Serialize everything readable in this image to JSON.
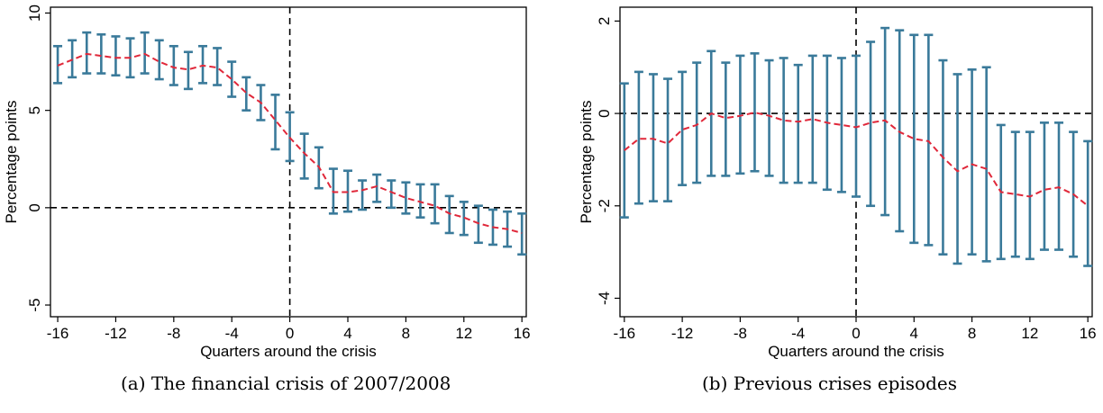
{
  "captions": [
    "(a) The financial crisis of 2007/2008",
    "(b) Previous crises episodes"
  ],
  "colors": {
    "ci": "#3a7a9a",
    "estimate": "#e0283a",
    "reference": "#000000"
  },
  "chart_data": [
    {
      "type": "line",
      "title": "",
      "xlabel": "Quarters around the crisis",
      "ylabel": "Percentage points",
      "xlim": [
        -16.5,
        16.3
      ],
      "ylim": [
        -5.6,
        10.3
      ],
      "xticks": [
        -16,
        -12,
        -8,
        -4,
        0,
        4,
        8,
        12,
        16
      ],
      "yticks": [
        -5,
        0,
        5,
        10
      ],
      "reference_lines": {
        "x": 0,
        "y": 0,
        "style": "dashed"
      },
      "grid": false,
      "x": [
        -16,
        -15,
        -14,
        -13,
        -12,
        -11,
        -10,
        -9,
        -8,
        -7,
        -6,
        -5,
        -4,
        -3,
        -2,
        -1,
        0,
        1,
        2,
        3,
        4,
        5,
        6,
        7,
        8,
        9,
        10,
        11,
        12,
        13,
        14,
        15,
        16
      ],
      "series": [
        {
          "role": "estimate",
          "style": "dashed line",
          "values": [
            7.3,
            7.6,
            7.9,
            7.8,
            7.7,
            7.7,
            7.9,
            7.5,
            7.2,
            7.1,
            7.3,
            7.2,
            6.6,
            5.9,
            5.4,
            4.5,
            3.6,
            2.8,
            2.1,
            0.8,
            0.8,
            0.9,
            1.1,
            0.8,
            0.5,
            0.3,
            0.1,
            -0.3,
            -0.5,
            -0.8,
            -1.0,
            -1.1,
            -1.3
          ]
        },
        {
          "role": "ci_lower",
          "style": "capped error bar",
          "values": [
            6.4,
            6.7,
            6.9,
            6.9,
            6.8,
            6.7,
            6.9,
            6.6,
            6.3,
            6.1,
            6.4,
            6.3,
            5.7,
            5.0,
            4.5,
            3.0,
            2.4,
            1.5,
            1.0,
            -0.3,
            -0.2,
            -0.1,
            0.3,
            0.0,
            -0.3,
            -0.5,
            -0.8,
            -1.3,
            -1.4,
            -1.8,
            -1.9,
            -2.0,
            -2.4
          ]
        },
        {
          "role": "ci_upper",
          "style": "capped error bar",
          "values": [
            8.3,
            8.6,
            9.0,
            8.9,
            8.8,
            8.7,
            9.0,
            8.6,
            8.3,
            8.0,
            8.3,
            8.2,
            7.5,
            6.7,
            6.3,
            5.8,
            4.9,
            3.8,
            3.1,
            2.0,
            1.9,
            1.4,
            1.7,
            1.4,
            1.3,
            1.2,
            1.2,
            0.6,
            0.3,
            0.1,
            -0.1,
            -0.2,
            -0.3
          ]
        }
      ]
    },
    {
      "type": "line",
      "title": "",
      "xlabel": "Quarters around the crisis",
      "ylabel": "Percentage points",
      "xlim": [
        -16.3,
        16.3
      ],
      "ylim": [
        -4.4,
        2.3
      ],
      "xticks": [
        -16,
        -12,
        -8,
        -4,
        0,
        4,
        8,
        12,
        16
      ],
      "yticks": [
        -4,
        -2,
        0,
        2
      ],
      "reference_lines": {
        "x": 0,
        "y": 0,
        "style": "dashed"
      },
      "grid": false,
      "x": [
        -16,
        -15,
        -14,
        -13,
        -12,
        -11,
        -10,
        -9,
        -8,
        -7,
        -6,
        -5,
        -4,
        -3,
        -2,
        -1,
        0,
        1,
        2,
        3,
        4,
        5,
        6,
        7,
        8,
        9,
        10,
        11,
        12,
        13,
        14,
        15,
        16
      ],
      "series": [
        {
          "role": "estimate",
          "style": "dashed line",
          "values": [
            -0.8,
            -0.55,
            -0.55,
            -0.65,
            -0.35,
            -0.25,
            0.0,
            -0.1,
            -0.05,
            0.02,
            -0.05,
            -0.15,
            -0.18,
            -0.12,
            -0.2,
            -0.25,
            -0.3,
            -0.2,
            -0.15,
            -0.4,
            -0.55,
            -0.6,
            -0.95,
            -1.25,
            -1.1,
            -1.2,
            -1.7,
            -1.75,
            -1.8,
            -1.65,
            -1.6,
            -1.75,
            -2.0
          ]
        },
        {
          "role": "ci_lower",
          "style": "capped error bar",
          "values": [
            -2.25,
            -1.95,
            -1.9,
            -1.9,
            -1.55,
            -1.5,
            -1.35,
            -1.35,
            -1.3,
            -1.25,
            -1.35,
            -1.5,
            -1.5,
            -1.5,
            -1.65,
            -1.7,
            -1.8,
            -2.0,
            -2.2,
            -2.55,
            -2.8,
            -2.85,
            -3.05,
            -3.25,
            -3.05,
            -3.2,
            -3.15,
            -3.1,
            -3.15,
            -2.95,
            -2.95,
            -3.1,
            -3.3
          ]
        },
        {
          "role": "ci_upper",
          "style": "capped error bar",
          "values": [
            0.65,
            0.9,
            0.85,
            0.75,
            0.9,
            1.1,
            1.35,
            1.1,
            1.25,
            1.3,
            1.15,
            1.2,
            1.05,
            1.25,
            1.25,
            1.2,
            1.25,
            1.55,
            1.85,
            1.8,
            1.7,
            1.7,
            1.15,
            0.85,
            0.95,
            1.0,
            -0.25,
            -0.4,
            -0.4,
            -0.2,
            -0.2,
            -0.4,
            -0.6
          ]
        }
      ]
    }
  ]
}
